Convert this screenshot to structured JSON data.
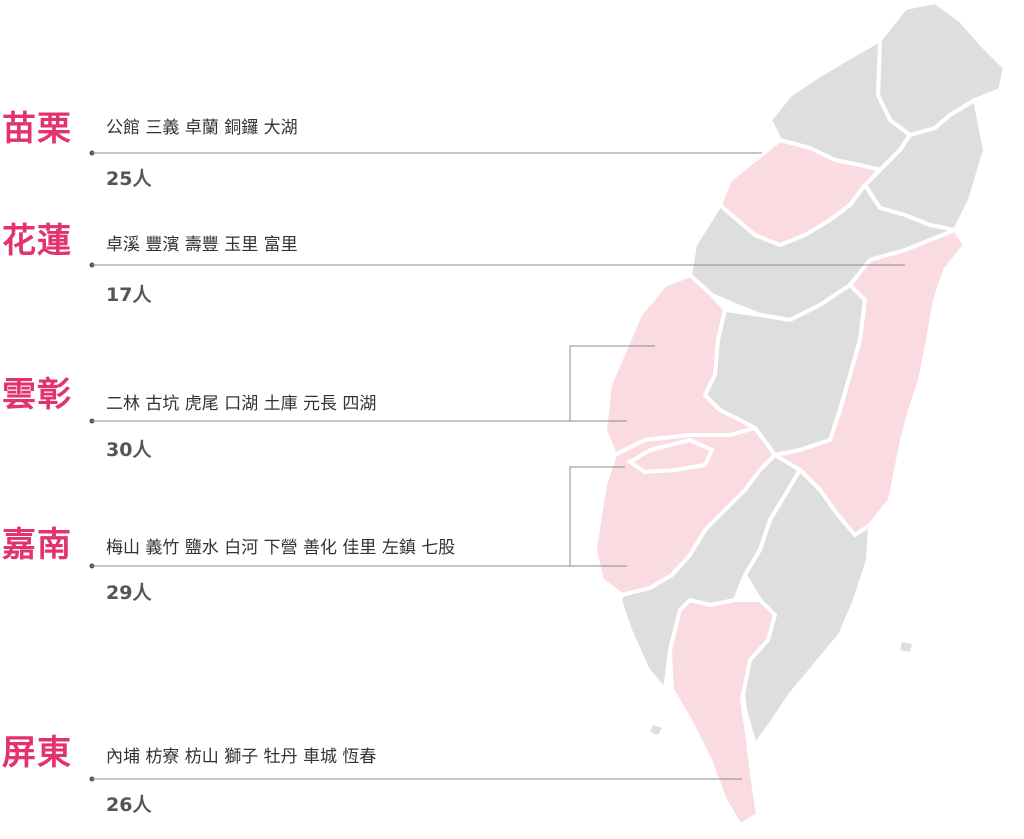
{
  "colors": {
    "accent": "#e2336d",
    "highlight_region": "#f9dbe1",
    "base_region": "#dddedd",
    "text": "#333333",
    "count_text": "#555555"
  },
  "groups": [
    {
      "county": "苗栗",
      "towns": "公館 三義 卓蘭 銅鑼 大湖",
      "count": "25人"
    },
    {
      "county": "花蓮",
      "towns": "卓溪 豐濱 壽豐 玉里 富里",
      "count": "17人"
    },
    {
      "county": "雲彰",
      "towns": "二林 古坑 虎尾 口湖 土庫 元長 四湖",
      "count": "30人"
    },
    {
      "county": "嘉南",
      "towns": "梅山 義竹 鹽水 白河 下營 善化 佳里 左鎮 七股",
      "count": "29人"
    },
    {
      "county": "屏東",
      "towns": "內埔 枋寮 枋山 獅子 牡丹 車城 恆春",
      "count": "26人"
    }
  ]
}
